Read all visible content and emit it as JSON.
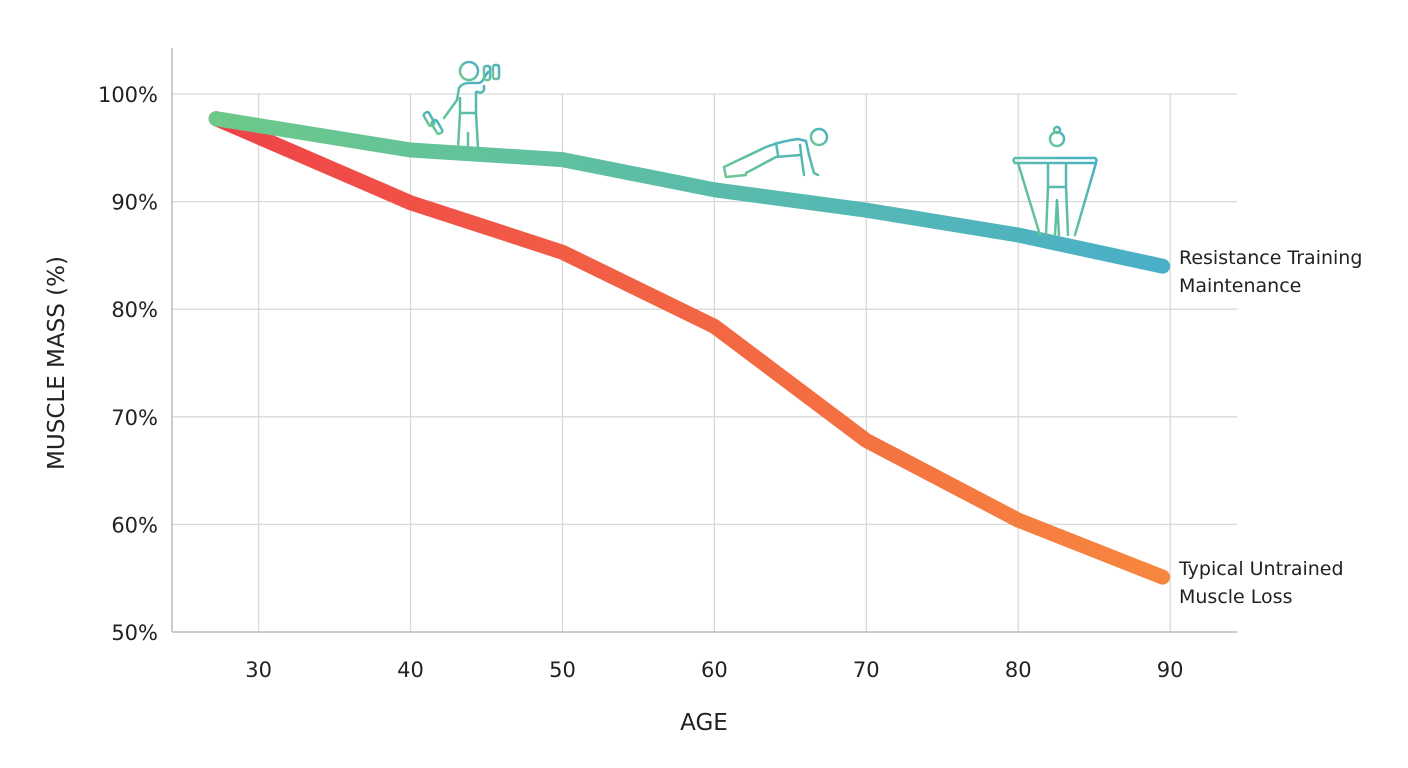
{
  "chart_data": {
    "type": "line",
    "title": "",
    "xlabel": "AGE",
    "ylabel": "MUSCLE MASS (%)",
    "xlim": [
      24.3,
      94.4
    ],
    "ylim": [
      50,
      100
    ],
    "xticks": [
      30,
      40,
      50,
      60,
      70,
      80,
      90
    ],
    "xtick_labels": [
      "30",
      "40",
      "50",
      "60",
      "70",
      "80",
      "90"
    ],
    "yticks": [
      50,
      60,
      70,
      80,
      90,
      100
    ],
    "ytick_labels": [
      "50%",
      "60%",
      "70%",
      "80%",
      "90%",
      "100%"
    ],
    "grid": true,
    "series": [
      {
        "name": "Resistance Training Maintenance",
        "label_lines": [
          "Resistance Training",
          "Maintenance"
        ],
        "x": [
          27.2,
          40,
          50,
          60,
          70,
          80,
          89.5
        ],
        "y": [
          97.7,
          94.8,
          93.9,
          91.1,
          89.2,
          86.9,
          84.0
        ],
        "colors": [
          "#6cc98a",
          "#4aafc8"
        ]
      },
      {
        "name": "Typical Untrained Muscle Loss",
        "label_lines": [
          "Typical Untrained",
          "Muscle Loss"
        ],
        "x": [
          27.2,
          40,
          50,
          60,
          70,
          80,
          89.5
        ],
        "y": [
          97.7,
          89.9,
          85.3,
          78.4,
          67.8,
          60.4,
          55.1
        ],
        "colors": [
          "#ee4349",
          "#f7873e"
        ]
      }
    ],
    "icons": [
      {
        "name": "dumbbell-curl-icon",
        "x": 44,
        "y": 100
      },
      {
        "name": "push-up-icon",
        "x": 65,
        "y": 93
      },
      {
        "name": "resistance-band-icon",
        "x": 83,
        "y": 92
      }
    ]
  }
}
